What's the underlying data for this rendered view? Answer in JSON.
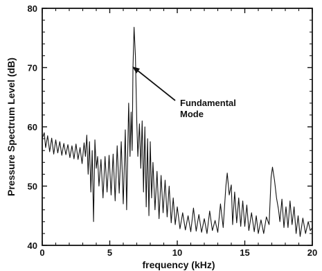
{
  "chart_data": {
    "type": "line",
    "xlabel": "frequency (kHz)",
    "ylabel": "Pressure Spectrum Level (dB)",
    "xlim": [
      0,
      20
    ],
    "ylim": [
      40,
      80
    ],
    "xticks": [
      0,
      5,
      10,
      15,
      20
    ],
    "yticks": [
      40,
      50,
      60,
      70,
      80
    ],
    "grid": false,
    "annotation": {
      "lines": [
        "Fundamental",
        "Mode"
      ],
      "points_to": [
        6.7,
        76.8
      ]
    },
    "series": [
      {
        "values": [
          [
            0.0,
            58.0
          ],
          [
            0.15,
            59.0
          ],
          [
            0.25,
            56.5
          ],
          [
            0.4,
            58.5
          ],
          [
            0.55,
            55.8
          ],
          [
            0.7,
            58.1
          ],
          [
            0.85,
            55.4
          ],
          [
            1.0,
            57.8
          ],
          [
            1.15,
            55.6
          ],
          [
            1.3,
            57.5
          ],
          [
            1.45,
            55.2
          ],
          [
            1.6,
            57.2
          ],
          [
            1.75,
            55.3
          ],
          [
            1.9,
            57.0
          ],
          [
            2.05,
            54.8
          ],
          [
            2.2,
            56.8
          ],
          [
            2.35,
            54.6
          ],
          [
            2.5,
            57.1
          ],
          [
            2.65,
            54.5
          ],
          [
            2.8,
            56.5
          ],
          [
            2.95,
            53.8
          ],
          [
            3.1,
            57.3
          ],
          [
            3.2,
            55.0
          ],
          [
            3.3,
            58.6
          ],
          [
            3.4,
            52.0
          ],
          [
            3.5,
            57.5
          ],
          [
            3.6,
            49.0
          ],
          [
            3.7,
            56.0
          ],
          [
            3.8,
            44.0
          ],
          [
            3.9,
            57.8
          ],
          [
            4.0,
            53.0
          ],
          [
            4.1,
            55.0
          ],
          [
            4.2,
            50.0
          ],
          [
            4.35,
            54.5
          ],
          [
            4.5,
            48.0
          ],
          [
            4.65,
            55.0
          ],
          [
            4.8,
            49.0
          ],
          [
            4.95,
            55.2
          ],
          [
            5.1,
            48.5
          ],
          [
            5.25,
            55.4
          ],
          [
            5.4,
            47.5
          ],
          [
            5.55,
            56.8
          ],
          [
            5.7,
            48.8
          ],
          [
            5.85,
            57.5
          ],
          [
            6.0,
            47.0
          ],
          [
            6.15,
            59.5
          ],
          [
            6.25,
            46.0
          ],
          [
            6.4,
            64.0
          ],
          [
            6.5,
            55.0
          ],
          [
            6.58,
            62.5
          ],
          [
            6.66,
            56.0
          ],
          [
            6.72,
            70.0
          ],
          [
            6.8,
            76.8
          ],
          [
            6.9,
            72.0
          ],
          [
            7.0,
            61.0
          ],
          [
            7.08,
            55.0
          ],
          [
            7.2,
            60.5
          ],
          [
            7.3,
            53.0
          ],
          [
            7.4,
            61.0
          ],
          [
            7.5,
            49.0
          ],
          [
            7.6,
            60.0
          ],
          [
            7.7,
            46.5
          ],
          [
            7.8,
            58.0
          ],
          [
            7.9,
            45.0
          ],
          [
            8.0,
            57.5
          ],
          [
            8.1,
            48.0
          ],
          [
            8.2,
            54.0
          ],
          [
            8.35,
            46.0
          ],
          [
            8.5,
            52.5
          ],
          [
            8.65,
            44.5
          ],
          [
            8.8,
            51.8
          ],
          [
            8.95,
            45.5
          ],
          [
            9.1,
            51.0
          ],
          [
            9.25,
            44.8
          ],
          [
            9.4,
            50.0
          ],
          [
            9.55,
            43.8
          ],
          [
            9.7,
            48.0
          ],
          [
            9.85,
            43.5
          ],
          [
            10.0,
            46.5
          ],
          [
            10.2,
            42.8
          ],
          [
            10.4,
            45.5
          ],
          [
            10.6,
            42.6
          ],
          [
            10.8,
            45.0
          ],
          [
            11.0,
            42.3
          ],
          [
            11.2,
            46.3
          ],
          [
            11.4,
            42.4
          ],
          [
            11.6,
            45.2
          ],
          [
            11.8,
            42.2
          ],
          [
            12.0,
            44.5
          ],
          [
            12.2,
            42.0
          ],
          [
            12.4,
            45.8
          ],
          [
            12.6,
            42.5
          ],
          [
            12.8,
            44.2
          ],
          [
            13.0,
            42.2
          ],
          [
            13.2,
            47.0
          ],
          [
            13.4,
            43.0
          ],
          [
            13.6,
            50.0
          ],
          [
            13.7,
            52.2
          ],
          [
            13.85,
            48.5
          ],
          [
            14.0,
            50.2
          ],
          [
            14.1,
            43.5
          ],
          [
            14.25,
            49.0
          ],
          [
            14.4,
            43.8
          ],
          [
            14.55,
            48.0
          ],
          [
            14.7,
            43.2
          ],
          [
            14.85,
            47.5
          ],
          [
            15.0,
            43.2
          ],
          [
            15.15,
            46.8
          ],
          [
            15.3,
            42.5
          ],
          [
            15.5,
            45.5
          ],
          [
            15.7,
            42.3
          ],
          [
            15.85,
            45.0
          ],
          [
            16.0,
            42.0
          ],
          [
            16.2,
            44.3
          ],
          [
            16.4,
            42.0
          ],
          [
            16.6,
            44.8
          ],
          [
            16.8,
            43.5
          ],
          [
            16.95,
            51.5
          ],
          [
            17.05,
            53.2
          ],
          [
            17.2,
            51.0
          ],
          [
            17.35,
            48.0
          ],
          [
            17.5,
            46.0
          ],
          [
            17.6,
            44.0
          ],
          [
            17.75,
            47.8
          ],
          [
            17.9,
            43.0
          ],
          [
            18.05,
            46.5
          ],
          [
            18.2,
            43.0
          ],
          [
            18.35,
            47.5
          ],
          [
            18.5,
            43.5
          ],
          [
            18.65,
            46.5
          ],
          [
            18.8,
            42.0
          ],
          [
            18.95,
            45.0
          ],
          [
            19.1,
            41.5
          ],
          [
            19.3,
            44.6
          ],
          [
            19.5,
            42.0
          ],
          [
            19.7,
            44.0
          ],
          [
            19.85,
            42.5
          ],
          [
            20.0,
            43.0
          ]
        ]
      }
    ]
  }
}
